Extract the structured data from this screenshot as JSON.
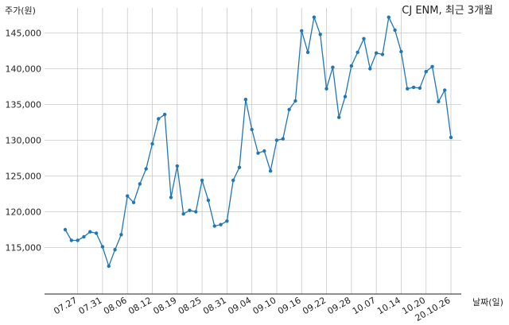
{
  "chart_data": {
    "type": "line",
    "title": "CJ ENM, 최근 3개월",
    "ylabel": "주가(원)",
    "xlabel": "날짜(일)",
    "ylim": [
      108500,
      148500
    ],
    "yticks": [
      115000,
      120000,
      125000,
      130000,
      135000,
      140000,
      145000
    ],
    "ytick_labels": [
      "115,000",
      "120,000",
      "125,000",
      "130,000",
      "135,000",
      "140,000",
      "145,000"
    ],
    "xtick_labels": [
      "07.27",
      "07.31",
      "08.06",
      "08.12",
      "08.19",
      "08.25",
      "08.31",
      "09.04",
      "09.10",
      "09.16",
      "09.22",
      "09.28",
      "10.07",
      "10.14",
      "10.20",
      "20.10.26"
    ],
    "xtick_index": [
      2,
      6,
      10,
      14,
      18,
      22,
      26,
      30,
      34,
      38,
      42,
      46,
      50,
      54,
      58,
      62
    ],
    "grid": true,
    "color": "#1f77b4",
    "values": [
      117500,
      116000,
      116000,
      116500,
      117200,
      117000,
      115100,
      112400,
      114700,
      116800,
      122200,
      121300,
      123900,
      126000,
      129500,
      133000,
      133600,
      122000,
      126400,
      119700,
      120200,
      120000,
      124400,
      121600,
      118000,
      118200,
      118700,
      124400,
      126200,
      135700,
      131500,
      128200,
      128500,
      125700,
      130000,
      130200,
      134300,
      135500,
      145300,
      142300,
      147200,
      144800,
      137200,
      140200,
      133200,
      136100,
      140400,
      142300,
      144200,
      140000,
      142200,
      142000,
      147200,
      145400,
      142400,
      137200,
      137400,
      137300,
      139600,
      140300,
      135400,
      137000,
      130400
    ]
  }
}
